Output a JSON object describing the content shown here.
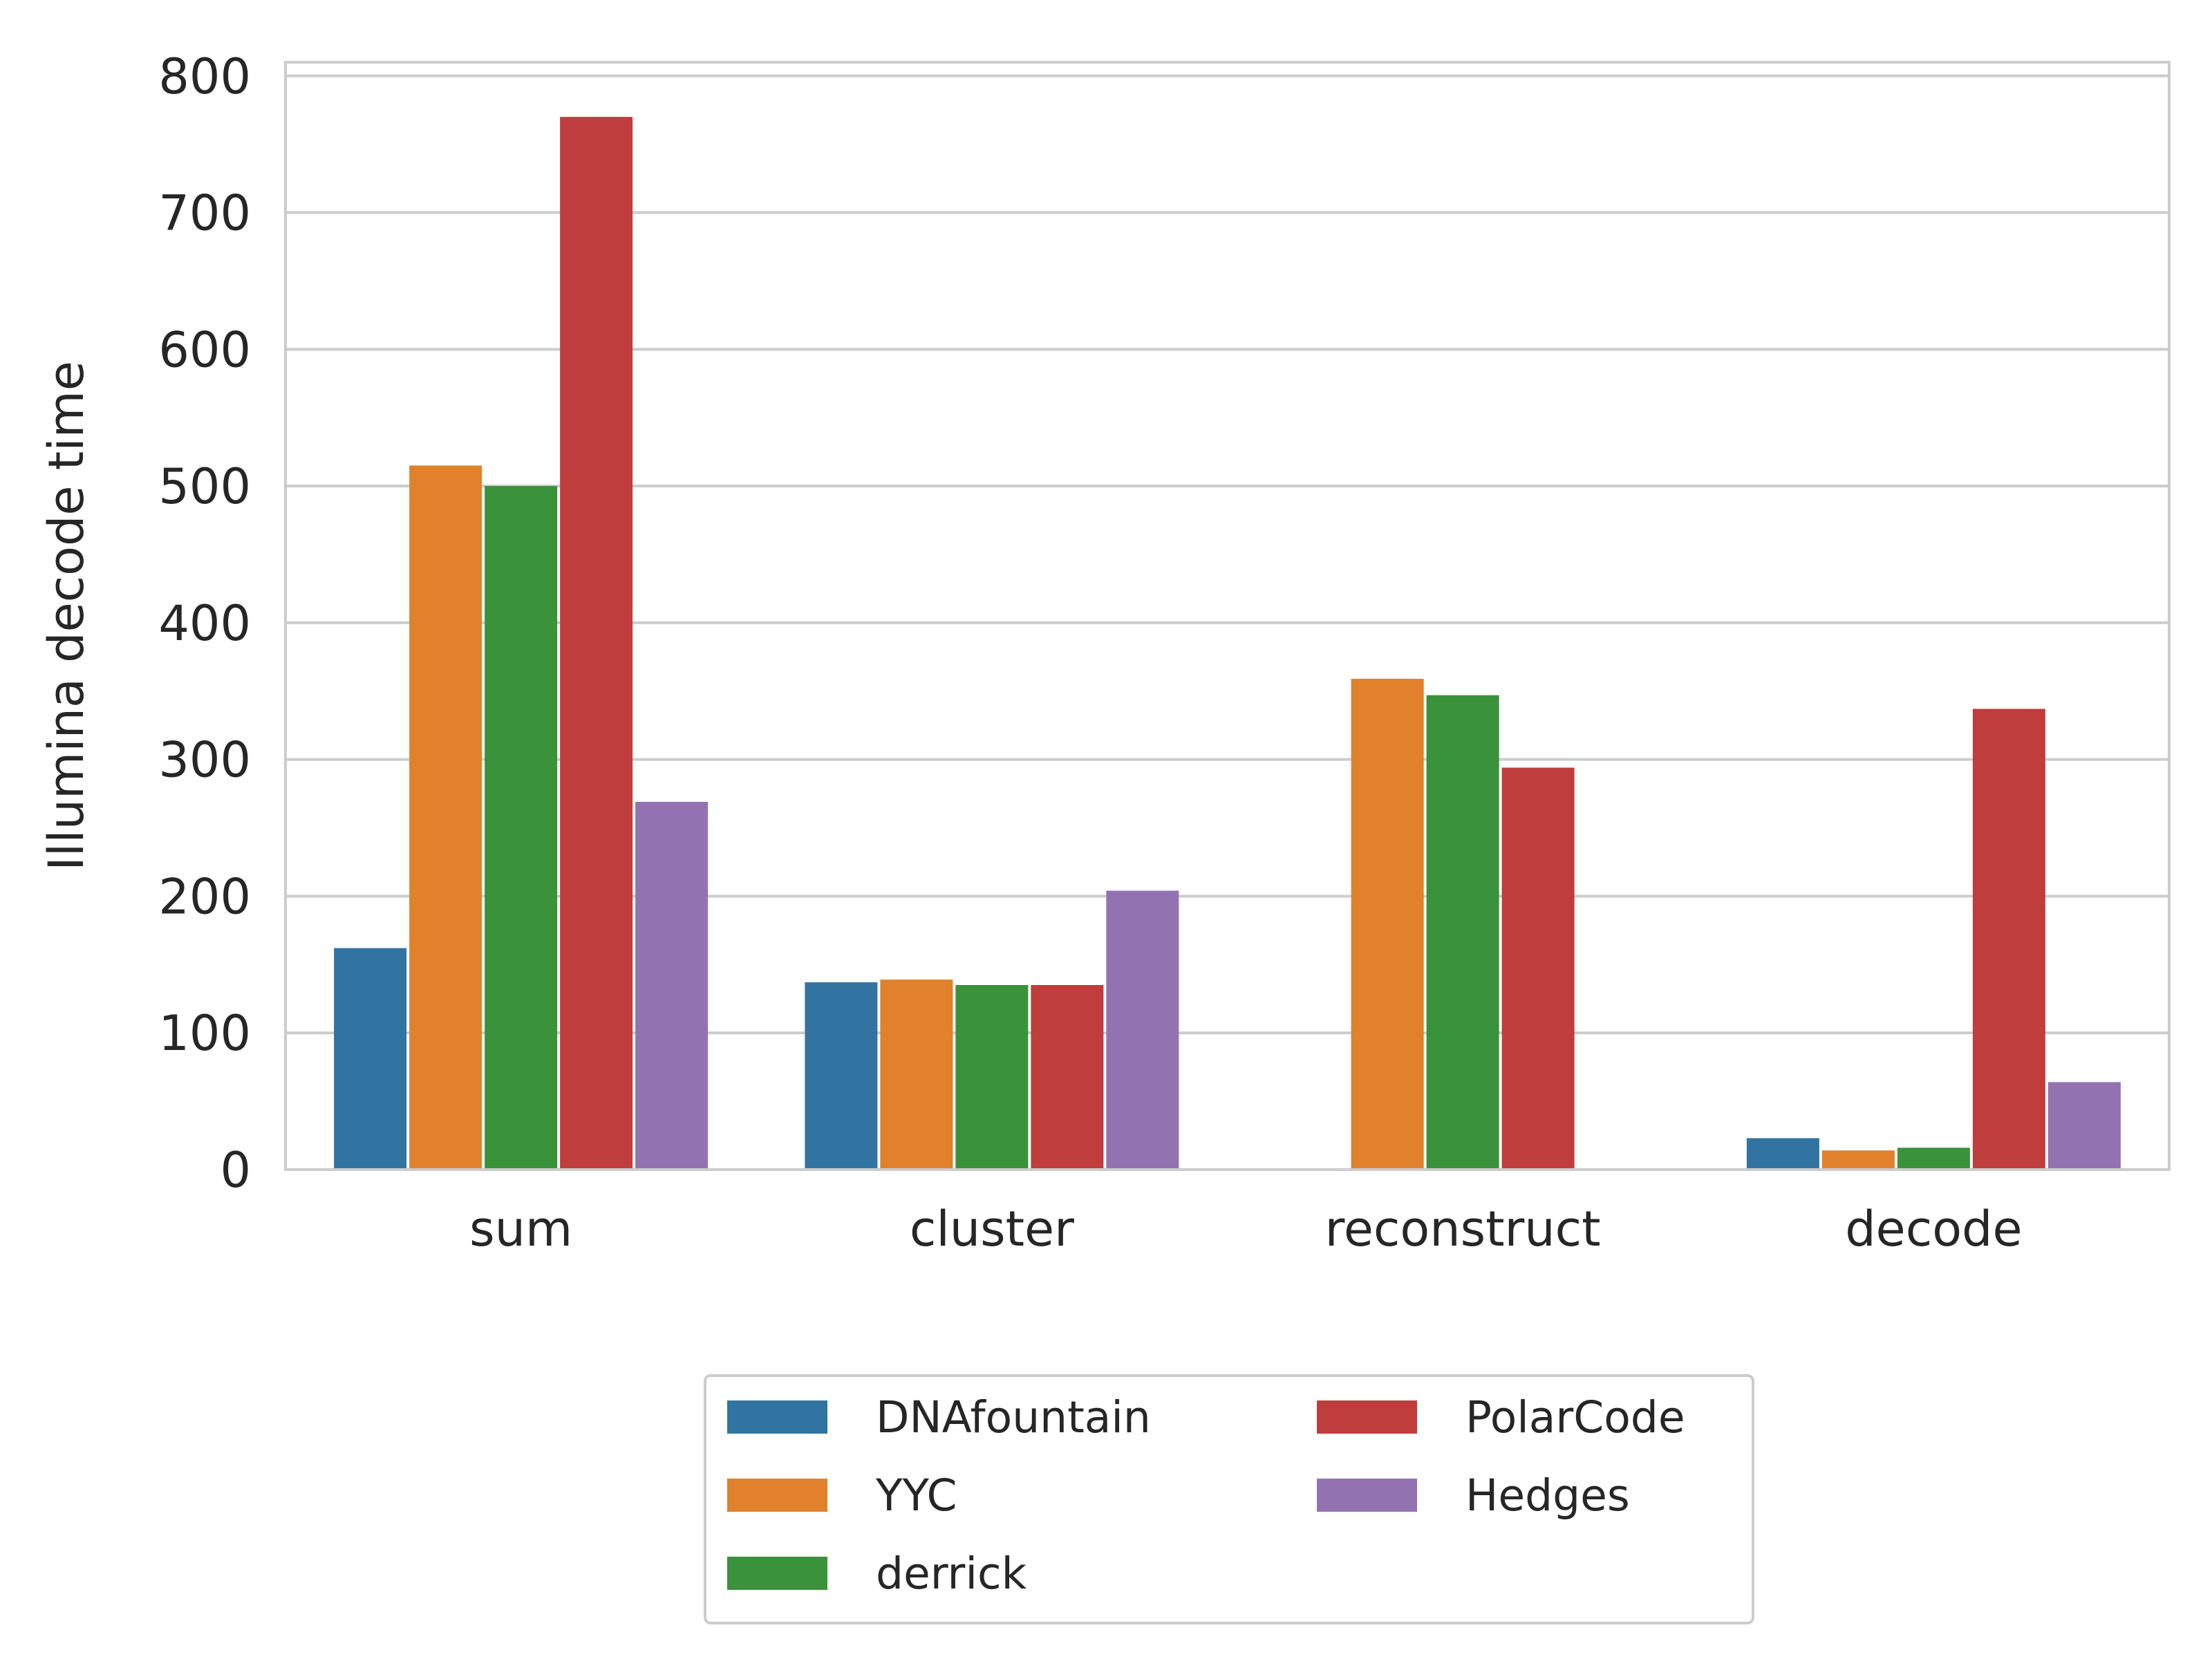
{
  "chart_data": {
    "type": "bar",
    "categories": [
      "sum",
      "cluster",
      "reconstruct",
      "decode"
    ],
    "series": [
      {
        "name": "DNAfountain",
        "color": "#3274a1",
        "values": [
          162,
          137,
          0,
          23
        ]
      },
      {
        "name": "YYC",
        "color": "#e1812c",
        "values": [
          515,
          139,
          359,
          14
        ]
      },
      {
        "name": "derrick",
        "color": "#3a923a",
        "values": [
          500,
          135,
          347,
          16
        ]
      },
      {
        "name": "PolarCode",
        "color": "#c03d3e",
        "values": [
          770,
          135,
          294,
          337
        ]
      },
      {
        "name": "Hedges",
        "color": "#9372b2",
        "values": [
          269,
          204,
          0,
          64
        ]
      }
    ],
    "title": "",
    "xlabel": "",
    "ylabel": "Illumina decode time",
    "ylim": [
      0,
      810
    ],
    "yticks": [
      "0",
      "100",
      "200",
      "300",
      "400",
      "500",
      "600",
      "700",
      "800"
    ],
    "grid": true,
    "legend_position": "bottom-center"
  }
}
